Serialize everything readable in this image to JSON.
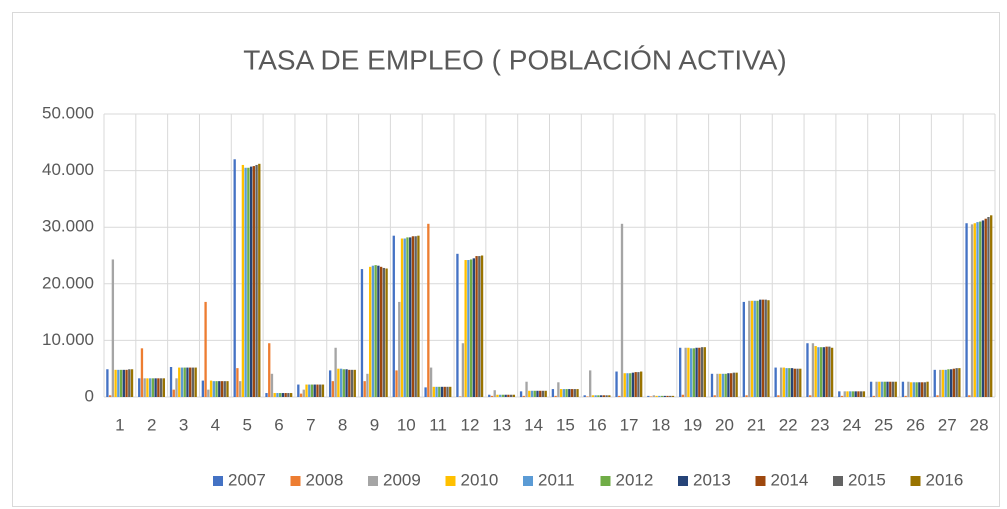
{
  "chart_data": {
    "type": "bar",
    "title": "TASA DE EMPLEO ( POBLACIÓN ACTIVA)",
    "categories": [
      "1",
      "2",
      "3",
      "4",
      "5",
      "6",
      "7",
      "8",
      "9",
      "10",
      "11",
      "12",
      "13",
      "14",
      "15",
      "16",
      "17",
      "18",
      "19",
      "20",
      "21",
      "22",
      "23",
      "24",
      "25",
      "26",
      "27",
      "28"
    ],
    "series": [
      {
        "name": "2007",
        "color": "#4472c4",
        "values": [
          4900,
          3300,
          5300,
          2900,
          42000,
          700,
          2200,
          4700,
          22600,
          28500,
          1700,
          25300,
          400,
          1000,
          1400,
          300,
          4500,
          200,
          8700,
          4100,
          16800,
          5200,
          9500,
          1000,
          2700,
          2700,
          4800,
          30700
        ]
      },
      {
        "name": "2008",
        "color": "#ed7d31",
        "values": [
          300,
          8600,
          1300,
          16800,
          5100,
          9500,
          600,
          2800,
          2800,
          4700,
          30600,
          100,
          200,
          200,
          200,
          100,
          200,
          100,
          400,
          300,
          300,
          300,
          300,
          200,
          200,
          200,
          300,
          300
        ]
      },
      {
        "name": "2009",
        "color": "#a5a5a5",
        "values": [
          24300,
          3300,
          3300,
          1300,
          2800,
          4100,
          1300,
          8700,
          4100,
          16800,
          5200,
          9500,
          1200,
          2700,
          2600,
          4700,
          30600,
          300,
          8700,
          4100,
          17000,
          5200,
          9500,
          1000,
          2700,
          2700,
          4800,
          30500
        ]
      },
      {
        "name": "2010",
        "color": "#ffc000",
        "values": [
          4800,
          3300,
          5200,
          2900,
          41000,
          700,
          2200,
          5000,
          23000,
          28000,
          1800,
          24200,
          400,
          1100,
          1400,
          300,
          4200,
          200,
          8700,
          4100,
          17000,
          5200,
          9000,
          1000,
          2700,
          2600,
          4800,
          30700
        ]
      },
      {
        "name": "2011",
        "color": "#5b9bd5",
        "values": [
          4800,
          3300,
          5200,
          2800,
          40500,
          700,
          2200,
          5000,
          23200,
          28000,
          1800,
          24200,
          400,
          1100,
          1400,
          300,
          4200,
          200,
          8600,
          4100,
          17000,
          5100,
          8800,
          1000,
          2700,
          2600,
          4800,
          30900
        ]
      },
      {
        "name": "2012",
        "color": "#70ad47",
        "values": [
          4800,
          3300,
          5200,
          2800,
          40500,
          700,
          2200,
          4900,
          23300,
          28200,
          1800,
          24300,
          400,
          1100,
          1400,
          300,
          4200,
          200,
          8600,
          4100,
          17000,
          5100,
          8800,
          1000,
          2700,
          2600,
          4900,
          31000
        ]
      },
      {
        "name": "2013",
        "color": "#264478",
        "values": [
          4800,
          3300,
          5200,
          2800,
          40700,
          700,
          2200,
          4900,
          23200,
          28200,
          1800,
          24500,
          400,
          1100,
          1400,
          300,
          4300,
          200,
          8700,
          4200,
          17200,
          5100,
          8800,
          1000,
          2700,
          2600,
          4900,
          31200
        ]
      },
      {
        "name": "2014",
        "color": "#9e480e",
        "values": [
          4800,
          3300,
          5200,
          2800,
          40800,
          700,
          2200,
          4800,
          23000,
          28400,
          1800,
          24900,
          400,
          1100,
          1400,
          300,
          4400,
          200,
          8700,
          4200,
          17200,
          5000,
          8900,
          1000,
          2700,
          2600,
          5000,
          31500
        ]
      },
      {
        "name": "2015",
        "color": "#636363",
        "values": [
          4900,
          3300,
          5200,
          2800,
          41000,
          700,
          2200,
          4800,
          22800,
          28400,
          1800,
          24900,
          400,
          1100,
          1400,
          300,
          4400,
          200,
          8800,
          4300,
          17200,
          5000,
          8900,
          1000,
          2700,
          2600,
          5100,
          31800
        ]
      },
      {
        "name": "2016",
        "color": "#997300",
        "values": [
          4900,
          3300,
          5200,
          2800,
          41200,
          700,
          2200,
          4800,
          22700,
          28500,
          1800,
          25000,
          400,
          1100,
          1400,
          300,
          4500,
          200,
          8800,
          4300,
          17100,
          5000,
          8700,
          1000,
          2700,
          2700,
          5100,
          32100
        ]
      }
    ],
    "ylim": [
      0,
      50000
    ],
    "yticks": [
      0,
      {
        "value": 10000,
        "label": "10.000"
      },
      {
        "value": 20000,
        "label": "20.000"
      },
      {
        "value": 30000,
        "label": "30.000"
      },
      {
        "value": 40000,
        "label": "40.000"
      },
      {
        "value": 50000,
        "label": "50.000"
      }
    ],
    "grid": true,
    "legend": "bottom"
  }
}
